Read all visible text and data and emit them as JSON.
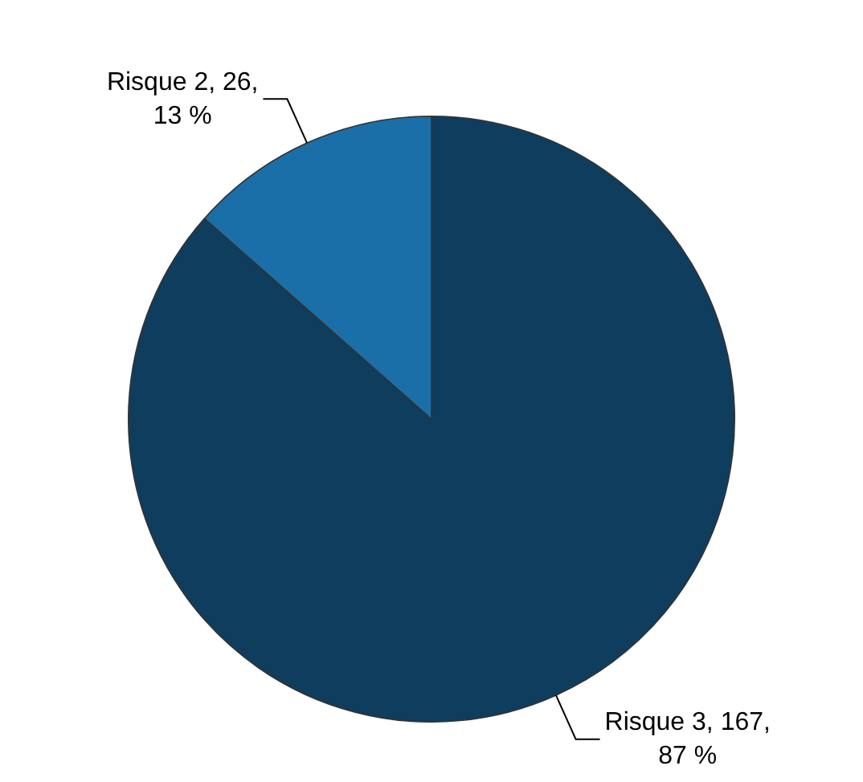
{
  "chart_data": {
    "type": "pie",
    "categories": [
      "Risque 3",
      "Risque 2"
    ],
    "values": [
      167,
      26
    ],
    "value_labels": [
      "167,\n87 %",
      "26,\n13 %"
    ],
    "colors": [
      "#0f3d5e",
      "#1a6fa8"
    ],
    "legend": false
  }
}
